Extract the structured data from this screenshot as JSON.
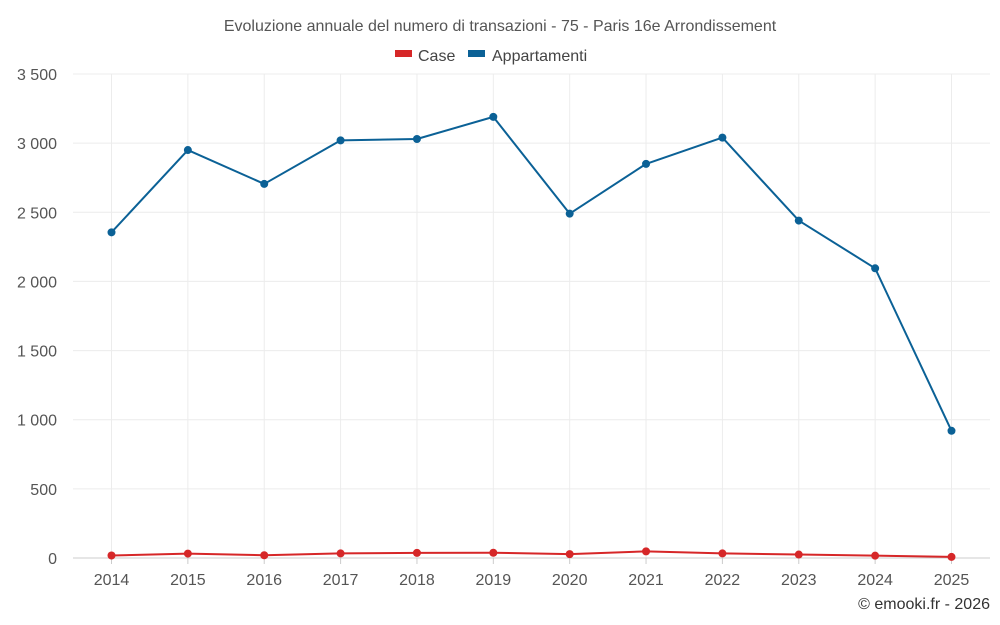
{
  "chart_data": {
    "type": "line",
    "title": "Evoluzione annuale del numero di transazioni - 75 - Paris 16e Arrondissement",
    "categories": [
      "2014",
      "2015",
      "2016",
      "2017",
      "2018",
      "2019",
      "2020",
      "2021",
      "2022",
      "2023",
      "2024",
      "2025"
    ],
    "series": [
      {
        "name": "Case",
        "color": "#d62728",
        "values": [
          18,
          32,
          20,
          33,
          37,
          38,
          28,
          48,
          33,
          25,
          17,
          8
        ]
      },
      {
        "name": "Appartamenti",
        "color": "#0b6196",
        "values": [
          2355,
          2950,
          2705,
          3020,
          3030,
          3190,
          2490,
          2850,
          3040,
          2440,
          2095,
          920
        ]
      }
    ],
    "ylim": [
      0,
      3500
    ],
    "yticks": [
      0,
      500,
      1000,
      1500,
      2000,
      2500,
      3000,
      3500
    ],
    "ytick_labels": [
      "0",
      "500",
      "1 000",
      "1 500",
      "2 000",
      "2 500",
      "3 000",
      "3 500"
    ],
    "xlabel": "",
    "ylabel": "",
    "legend_position": "top-center",
    "grid": true
  },
  "credit": "© emooki.fr - 2026"
}
